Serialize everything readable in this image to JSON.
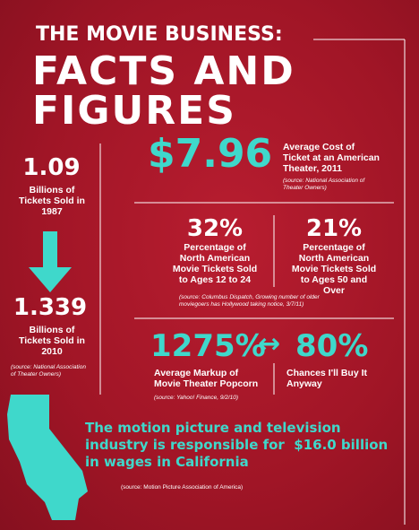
{
  "header": {
    "kicker": "THE MOVIE BUSINESS:",
    "title_line1": "FACTS AND",
    "title_line2": "FIGURES"
  },
  "tickets": {
    "then_figure": "1.09",
    "then_label": "Billions of Tickets Sold in 1987",
    "now_figure": "1.339",
    "now_label": "Billions of Tickets Sold in 2010",
    "source": "(source: National Association of Theater Owners)"
  },
  "ticket_cost": {
    "figure": "$7.96",
    "label": "Average Cost of Ticket at an American Theater, 2011",
    "source": "(source: National Association of Theater Owners)"
  },
  "ages": {
    "young_figure": "32%",
    "young_label": "Percentage of North American Movie Tickets Sold to Ages 12 to 24",
    "old_figure": "21%",
    "old_label": "Percentage of North American Movie Tickets Sold to Ages 50 and Over",
    "source": "(source: Columbus Dispatch, Growing number of older moviegoers has Hollywood taking notice, 3/7/11)"
  },
  "popcorn": {
    "markup_figure": "1275%",
    "arrow": "↔",
    "chance_figure": "80%",
    "markup_label": "Average Markup of Movie Theater Popcorn",
    "markup_source": "(source: Yahoo! Finance, 9/2/10)",
    "chance_label": "Chances I'll Buy It Anyway"
  },
  "california": {
    "statement": "The motion picture and television industry is responsible for  $16.0 billion in wages in California",
    "source": "(source: Motion Picture Association of America)"
  }
}
